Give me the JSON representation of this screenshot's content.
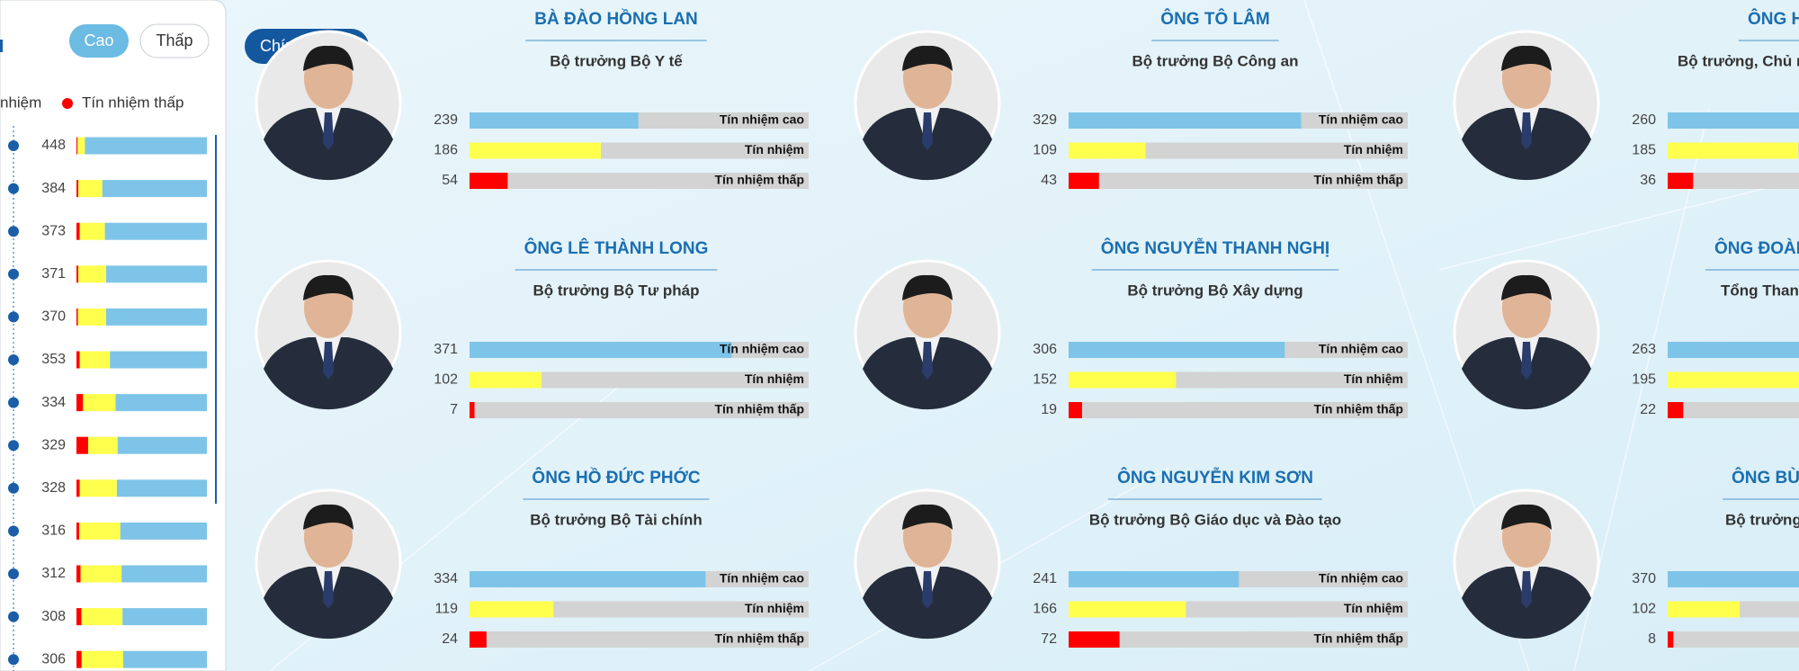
{
  "controls": {
    "sort_buttons": [
      "Cao",
      "Thấp"
    ],
    "group_button": "Chính phủ"
  },
  "row_labels": [
    "Tín nhiệm cao",
    "Tín nhiệm",
    "Tín nhiệm thấp"
  ],
  "chart_data": [
    {
      "type": "stacked_bar",
      "series": [
        {
          "name": "Tín nhiệm thấp",
          "color": "#ff0000",
          "values": [
            4,
            7,
            12,
            7,
            5,
            12,
            24,
            43,
            12,
            10,
            15,
            18,
            19
          ]
        },
        {
          "name": "nhiệm",
          "color": "#ffff4d",
          "values": [
            27,
            88,
            92,
            102,
            104,
            110,
            119,
            109,
            135,
            150,
            150,
            150,
            152
          ]
        },
        {
          "color": "#7ec4e8",
          "values": [
            448,
            384,
            373,
            371,
            370,
            353,
            334,
            329,
            328,
            316,
            312,
            308,
            306
          ]
        }
      ]
    },
    {
      "type": "bar",
      "title": "BÀ ĐÀO HỒNG LAN",
      "subtitle": "Bộ trưởng Bộ Y tế",
      "values": [
        239,
        186,
        54
      ],
      "colors": [
        "#7ec4e8",
        "#ffff4d",
        "#ff0000"
      ],
      "xlim": [
        0,
        480
      ]
    },
    {
      "type": "bar",
      "title": "ÔNG TÔ LÂM",
      "subtitle": "Bộ trưởng Bộ Công an",
      "values": [
        329,
        109,
        43
      ],
      "colors": [
        "#7ec4e8",
        "#ffff4d",
        "#ff0000"
      ],
      "xlim": [
        0,
        480
      ]
    },
    {
      "type": "bar",
      "title": "ÔNG H",
      "subtitle": "Bộ trưởng, Chủ n",
      "values": [
        260,
        185,
        36
      ],
      "colors": [
        "#7ec4e8",
        "#ffff4d",
        "#ff0000"
      ],
      "xlim": [
        0,
        480
      ]
    },
    {
      "type": "bar",
      "title": "ÔNG LÊ THÀNH LONG",
      "subtitle": "Bộ trưởng Bộ Tư pháp",
      "values": [
        371,
        102,
        7
      ],
      "colors": [
        "#7ec4e8",
        "#ffff4d",
        "#ff0000"
      ],
      "xlim": [
        0,
        480
      ]
    },
    {
      "type": "bar",
      "title": "ÔNG NGUYỄN THANH NGHỊ",
      "subtitle": "Bộ trưởng Bộ Xây dựng",
      "values": [
        306,
        152,
        19
      ],
      "colors": [
        "#7ec4e8",
        "#ffff4d",
        "#ff0000"
      ],
      "xlim": [
        0,
        480
      ]
    },
    {
      "type": "bar",
      "title": "ÔNG ĐOÀN",
      "subtitle": "Tổng Thanh",
      "values": [
        263,
        195,
        22
      ],
      "colors": [
        "#7ec4e8",
        "#ffff4d",
        "#ff0000"
      ],
      "xlim": [
        0,
        480
      ]
    },
    {
      "type": "bar",
      "title": "ÔNG HỒ ĐỨC PHỚC",
      "subtitle": "Bộ trưởng Bộ Tài chính",
      "values": [
        334,
        119,
        24
      ],
      "colors": [
        "#7ec4e8",
        "#ffff4d",
        "#ff0000"
      ],
      "xlim": [
        0,
        480
      ]
    },
    {
      "type": "bar",
      "title": "ÔNG NGUYỄN KIM SƠN",
      "subtitle": "Bộ trưởng Bộ Giáo dục và Đào tạo",
      "values": [
        241,
        166,
        72
      ],
      "colors": [
        "#7ec4e8",
        "#ffff4d",
        "#ff0000"
      ],
      "xlim": [
        0,
        480
      ]
    },
    {
      "type": "bar",
      "title": "ÔNG BÙI",
      "subtitle": "Bộ trưởng",
      "values": [
        370,
        102,
        8
      ],
      "colors": [
        "#7ec4e8",
        "#ffff4d",
        "#ff0000"
      ],
      "xlim": [
        0,
        480
      ]
    }
  ]
}
